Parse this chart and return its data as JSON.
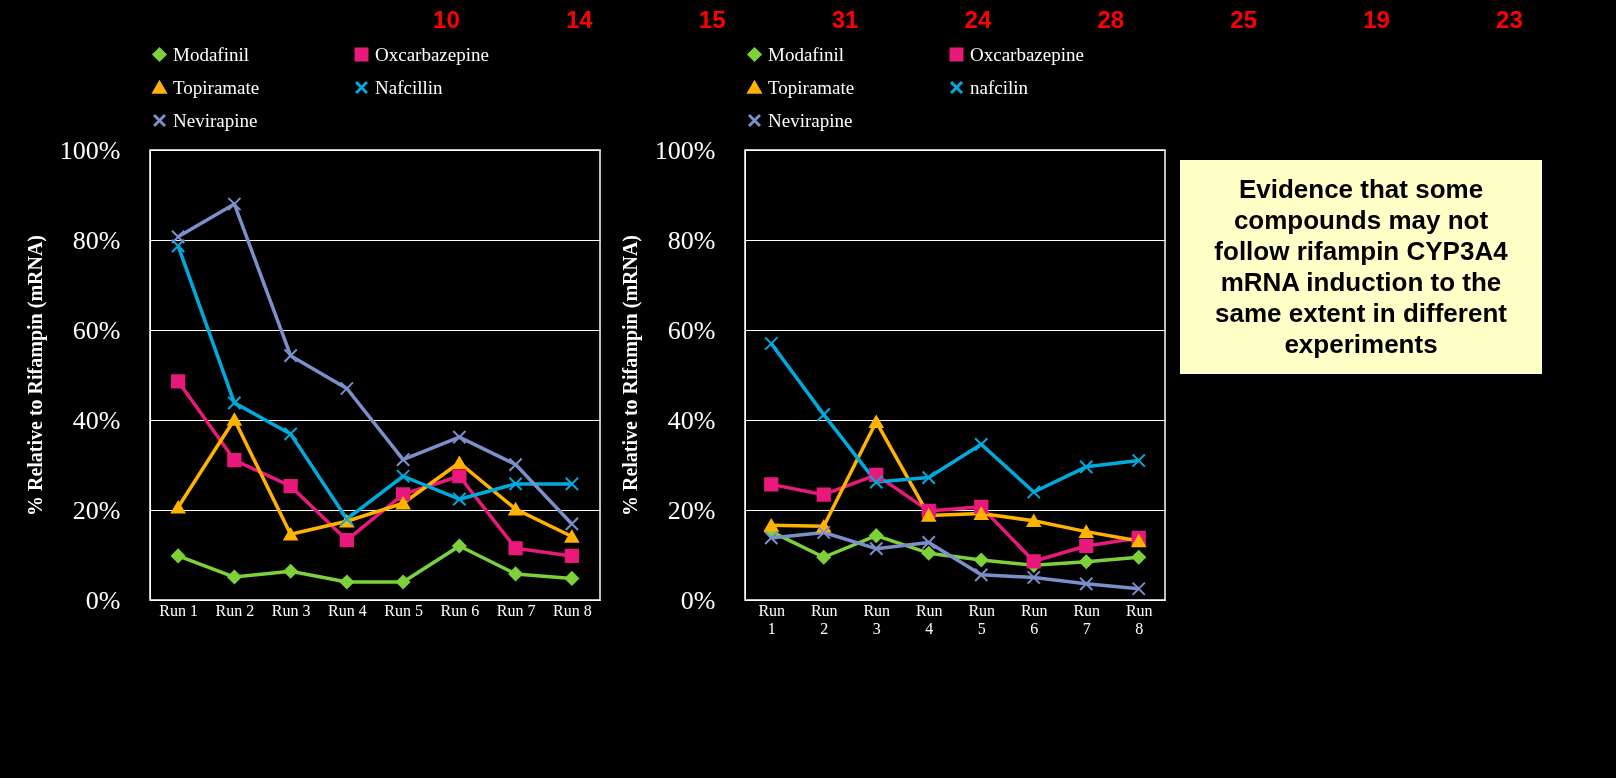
{
  "chart_data": [
    {
      "type": "line",
      "ylabel": "% Relative to Rifampin (mRNA)",
      "categories": [
        "Run 1",
        "Run 2",
        "Run 3",
        "Run 4",
        "Run 5",
        "Run 6",
        "Run 7",
        "Run 8"
      ],
      "series": [
        {
          "name": "Modafinil",
          "color": "#7dd13a",
          "marker": "diamond",
          "values": [
            9.8,
            5.1,
            6.4,
            4.0,
            4.0,
            12.0,
            5.8,
            4.8
          ]
        },
        {
          "name": "Oxcarbazepine",
          "color": "#e8197a",
          "marker": "square",
          "values": [
            48.6,
            31.1,
            25.3,
            13.3,
            23.5,
            27.5,
            11.5,
            9.8
          ]
        },
        {
          "name": "Topiramate",
          "color": "#ffb300",
          "marker": "triangle",
          "values": [
            20.6,
            40.1,
            14.6,
            17.5,
            21.5,
            30.5,
            20.2,
            14.1
          ]
        },
        {
          "name": "Nafcillin",
          "color": "#00aadd",
          "marker": "cross",
          "values": [
            78.7,
            43.8,
            36.9,
            18.0,
            27.5,
            22.4,
            25.8,
            25.8
          ]
        },
        {
          "name": "Nevirapine",
          "color": "#7b8fc9",
          "marker": "cross",
          "values": [
            80.7,
            88.0,
            54.3,
            47.0,
            31.2,
            36.2,
            30.1,
            16.9
          ]
        }
      ],
      "ylim": [
        0,
        100
      ],
      "yticks": [
        {
          "value": 0,
          "label": "0%"
        },
        {
          "value": 20,
          "label": "20%"
        },
        {
          "value": 40,
          "label": "40%"
        },
        {
          "value": 60,
          "label": "60%"
        },
        {
          "value": 80,
          "label": "80%"
        },
        {
          "value": 100,
          "label": "100%"
        }
      ],
      "grid": "y",
      "legend": "top",
      "annotations": [
        "10",
        "14",
        "15",
        "31",
        "24",
        "28",
        "25",
        "19",
        "23"
      ]
    },
    {
      "type": "line",
      "ylabel": "% Relative to Rifampin (mRNA)",
      "categories": [
        "Run 1",
        "Run 2",
        "Run 3",
        "Run 4",
        "Run 5",
        "Run 6",
        "Run 7",
        "Run 8"
      ],
      "series": [
        {
          "name": "Modafinil",
          "color": "#7dd13a",
          "marker": "diamond",
          "values": [
            15.2,
            9.5,
            14.3,
            10.4,
            8.9,
            7.7,
            8.5,
            9.5
          ]
        },
        {
          "name": "Oxcarbazepine",
          "color": "#e8197a",
          "marker": "square",
          "values": [
            25.7,
            23.4,
            27.8,
            19.8,
            20.7,
            8.6,
            12.0,
            13.8
          ]
        },
        {
          "name": "Topiramate",
          "color": "#ffb300",
          "marker": "triangle",
          "values": [
            16.6,
            16.4,
            39.6,
            18.8,
            19.2,
            17.6,
            15.2,
            13.1
          ]
        },
        {
          "name": "nafcilin",
          "color": "#00aadd",
          "marker": "cross",
          "values": [
            57,
            41.2,
            26.2,
            27.2,
            34.6,
            24.0,
            29.6,
            31.0
          ]
        },
        {
          "name": "Nevirapine",
          "color": "#7b8fc9",
          "marker": "cross",
          "values": [
            13.8,
            15.0,
            11.4,
            12.8,
            5.6,
            5.0,
            3.6,
            2.5
          ]
        }
      ],
      "ylim": [
        0,
        100
      ],
      "yticks": [
        {
          "value": 0,
          "label": "0%"
        },
        {
          "value": 20,
          "label": "20%"
        },
        {
          "value": 40,
          "label": "40%"
        },
        {
          "value": 60,
          "label": "60%"
        },
        {
          "value": 80,
          "label": "80%"
        },
        {
          "value": 100,
          "label": "100%"
        }
      ],
      "grid": "y",
      "legend": "top",
      "annotations": [
        "Evidence that some compounds may not follow rifampin CYP3A4 mRNA induction to the same extent in different experiments"
      ]
    }
  ]
}
